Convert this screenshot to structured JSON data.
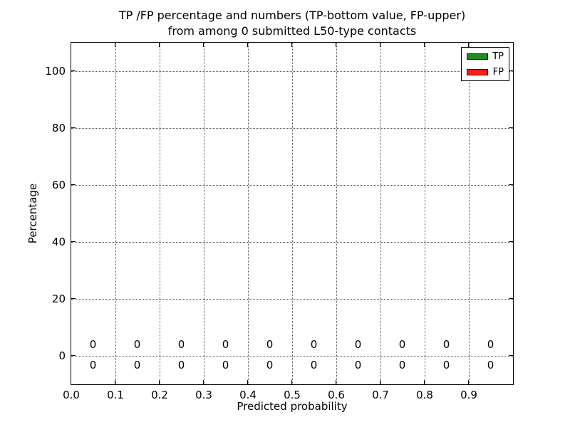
{
  "chart_data": {
    "type": "bar",
    "title_line1": "TP /FP percentage and numbers (TP-bottom value, FP-upper)",
    "title_line2": "from among 0 submitted L50-type contacts",
    "xlabel": "Predicted probability",
    "ylabel": "Percentage",
    "xlim": [
      0.0,
      1.0
    ],
    "ylim": [
      -10,
      110
    ],
    "xtick_values": [
      0.0,
      0.1,
      0.2,
      0.3,
      0.4,
      0.5,
      0.6,
      0.7,
      0.8,
      0.9
    ],
    "xtick_labels": [
      "0.0",
      "0.1",
      "0.2",
      "0.3",
      "0.4",
      "0.5",
      "0.6",
      "0.7",
      "0.8",
      "0.9"
    ],
    "ytick_values": [
      0,
      20,
      40,
      60,
      80,
      100
    ],
    "ytick_labels": [
      "0",
      "20",
      "40",
      "60",
      "80",
      "100"
    ],
    "grid": true,
    "grid_linestyle": "dotted",
    "categories": [
      0.05,
      0.15,
      0.25,
      0.35,
      0.45,
      0.55,
      0.65,
      0.75,
      0.85,
      0.95
    ],
    "series": [
      {
        "name": "TP",
        "color": "#228B22",
        "values": [
          0,
          0,
          0,
          0,
          0,
          0,
          0,
          0,
          0,
          0
        ]
      },
      {
        "name": "FP",
        "color": "#FF1F16",
        "values": [
          0,
          0,
          0,
          0,
          0,
          0,
          0,
          0,
          0,
          0
        ]
      }
    ],
    "annotations": {
      "fp_row_labels": [
        "0",
        "0",
        "0",
        "0",
        "0",
        "0",
        "0",
        "0",
        "0",
        "0"
      ],
      "fp_row_y": 4,
      "tp_row_labels": [
        "0",
        "0",
        "0",
        "0",
        "0",
        "0",
        "0",
        "0",
        "0",
        "0"
      ],
      "tp_row_y": -3.3
    },
    "legend": {
      "position": "upper right",
      "entries": [
        {
          "label": "TP",
          "color": "#228B22"
        },
        {
          "label": "FP",
          "color": "#FF1F16"
        }
      ]
    },
    "colors": {
      "text": "#000000",
      "spine": "#000000",
      "grid": "#555555",
      "background": "#ffffff"
    }
  }
}
